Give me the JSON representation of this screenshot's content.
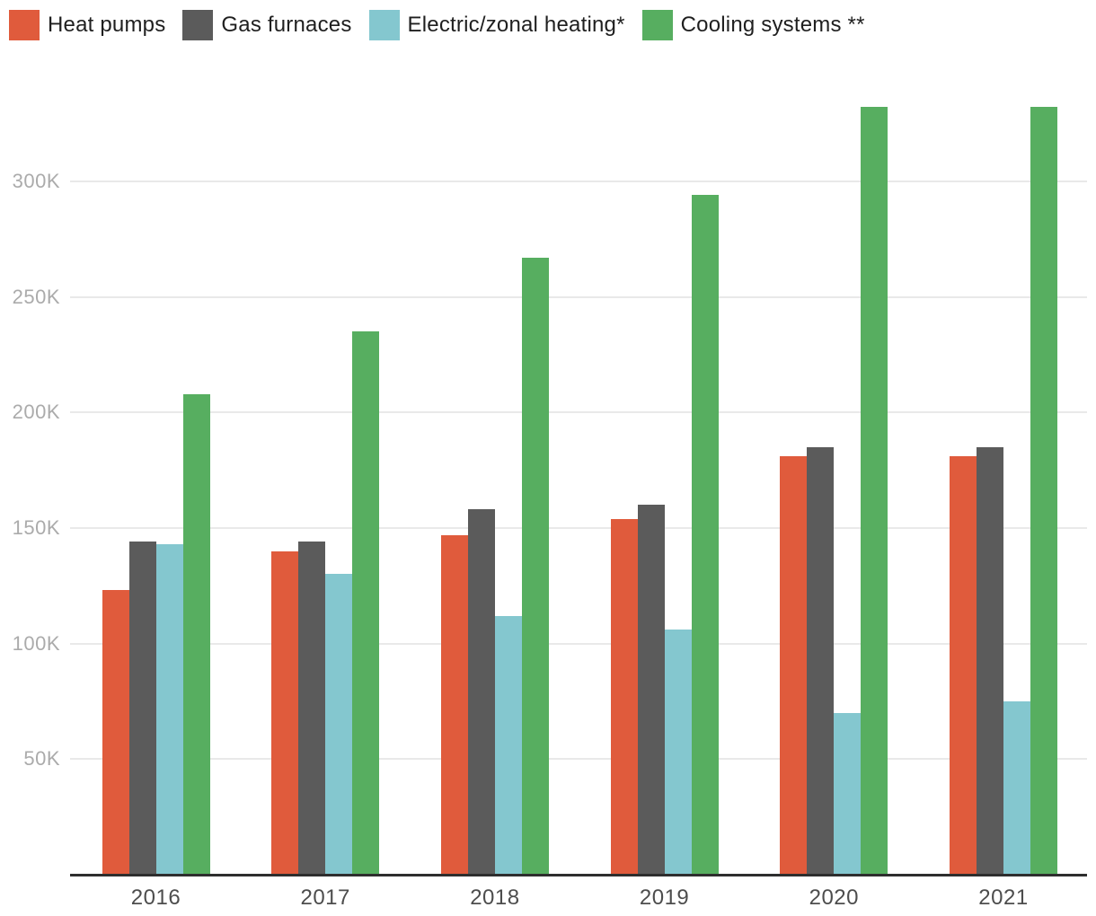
{
  "legend": {
    "items": [
      {
        "label": "Heat pumps",
        "color": "#e05b3c"
      },
      {
        "label": "Gas furnaces",
        "color": "#5b5b5b"
      },
      {
        "label": "Electric/zonal heating*",
        "color": "#84c7cf"
      },
      {
        "label": "Cooling systems **",
        "color": "#57ae60"
      }
    ]
  },
  "chart_data": {
    "type": "bar",
    "title": "",
    "xlabel": "",
    "ylabel": "",
    "categories": [
      "2016",
      "2017",
      "2018",
      "2019",
      "2020",
      "2021"
    ],
    "series": [
      {
        "name": "Heat pumps",
        "color": "#e05b3c",
        "values": [
          123000,
          140000,
          147000,
          154000,
          181000,
          181000
        ]
      },
      {
        "name": "Gas furnaces",
        "color": "#5b5b5b",
        "values": [
          144000,
          144000,
          158000,
          160000,
          185000,
          185000
        ]
      },
      {
        "name": "Electric/zonal heating*",
        "color": "#84c7cf",
        "values": [
          143000,
          130000,
          112000,
          106000,
          70000,
          75000
        ]
      },
      {
        "name": "Cooling systems **",
        "color": "#57ae60",
        "values": [
          208000,
          235000,
          267000,
          294000,
          332000,
          332000
        ]
      }
    ],
    "y_axis": {
      "unit": "K",
      "range": [
        0,
        350000
      ],
      "gridlines": true,
      "ticks": [
        {
          "value": 50000,
          "label": "50K"
        },
        {
          "value": 100000,
          "label": "100K"
        },
        {
          "value": 150000,
          "label": "150K"
        },
        {
          "value": 200000,
          "label": "200K"
        },
        {
          "value": 250000,
          "label": "250K"
        },
        {
          "value": 300000,
          "label": "300K"
        }
      ]
    },
    "legend_position": "top-left"
  },
  "colors": {
    "background": "#ffffff",
    "gridline": "#e9e9e9",
    "axis_line": "#2e2e2e",
    "y_tick_label": "#ababab",
    "x_tick_label": "#4d4d4d",
    "legend_text": "#1f1f1f"
  }
}
